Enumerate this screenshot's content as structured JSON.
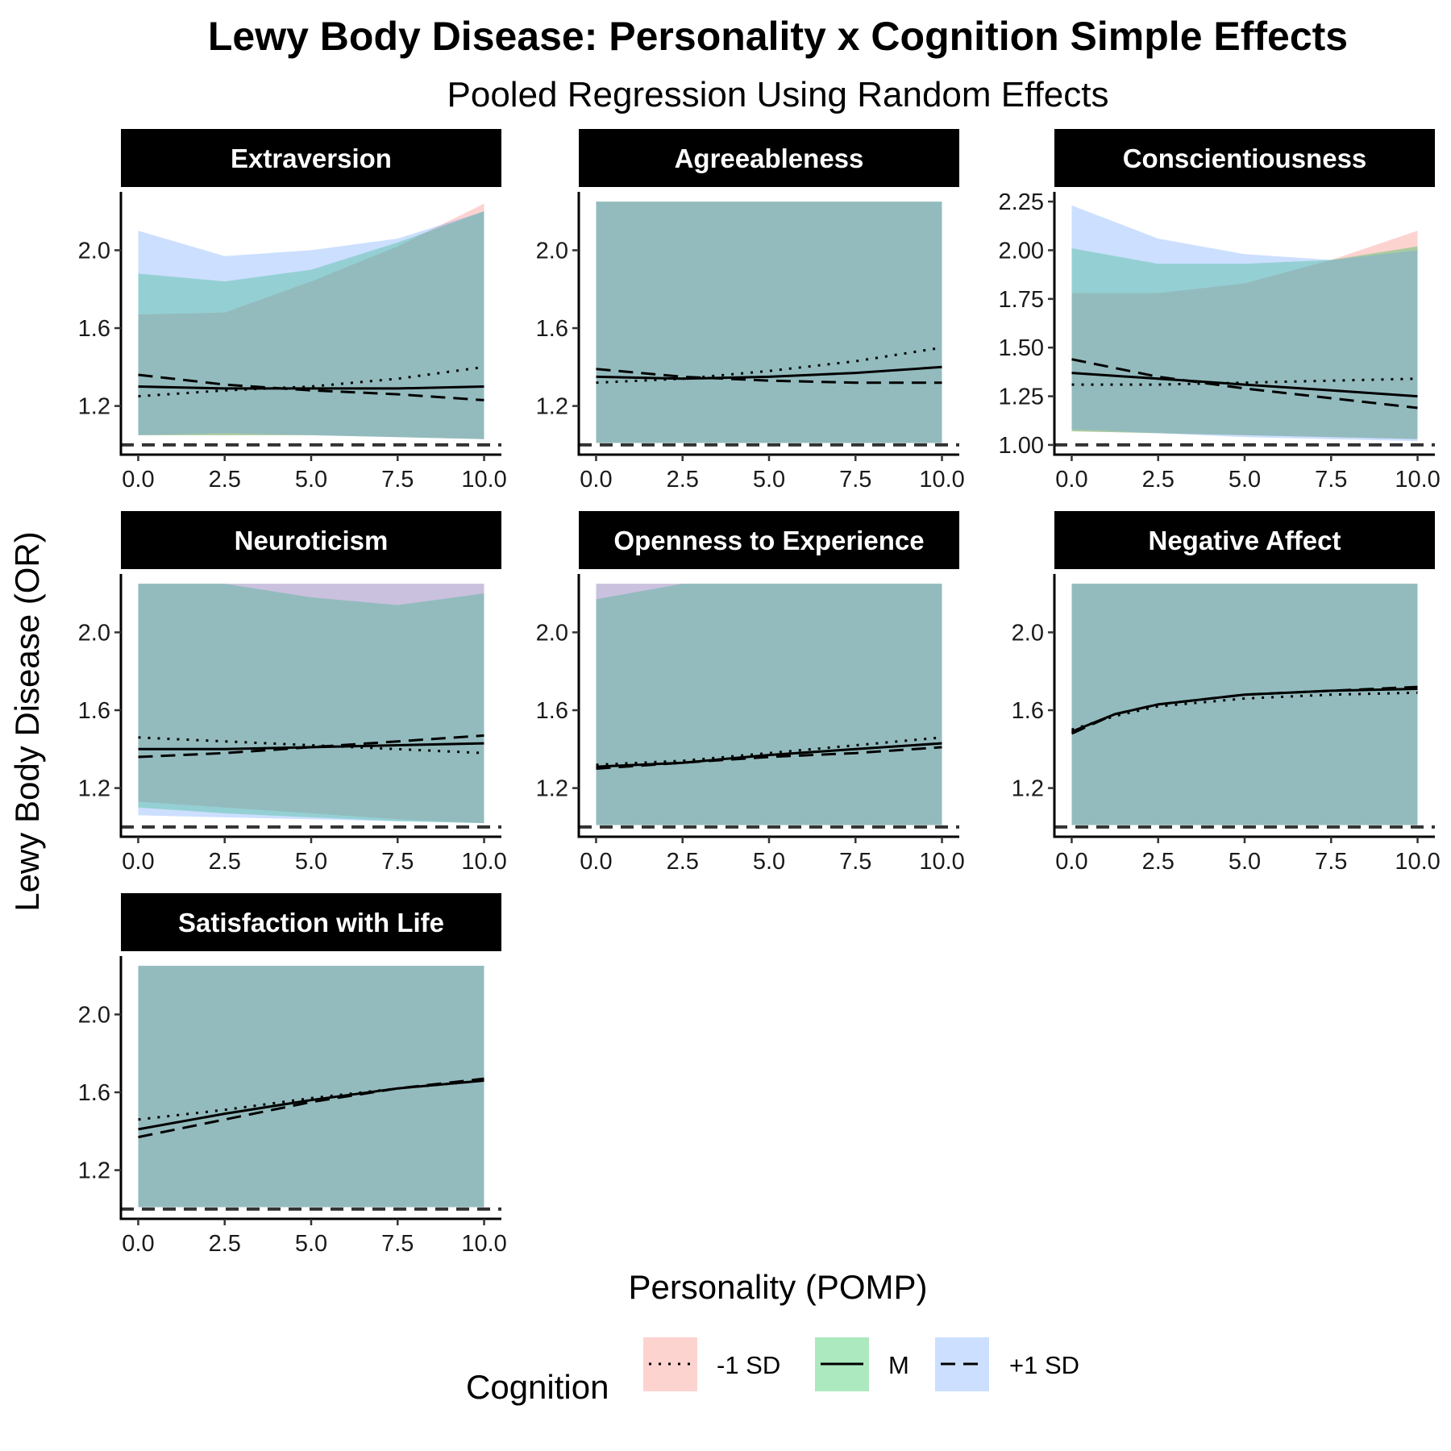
{
  "title": "Lewy Body Disease: Personality x Cognition Simple Effects",
  "subtitle": "Pooled Regression Using Random Effects",
  "xlabel": "Personality (POMP)",
  "ylabel": "Lewy Body Disease (OR)",
  "legend": {
    "title": "Cognition",
    "entries": [
      {
        "label": "-1 SD",
        "fill": "#F8766D",
        "linetype": "dotted"
      },
      {
        "label": "M",
        "fill": "#00BA38",
        "linetype": "solid"
      },
      {
        "label": "+1 SD",
        "fill": "#619CFF",
        "linetype": "dashed"
      }
    ]
  },
  "colors": {
    "minus1": "#F8766D",
    "mean": "#00BA38",
    "plus1": "#619CFF",
    "strip": "#000000",
    "reference": "#333333"
  },
  "chart_data": {
    "type": "line",
    "x_ticks": [
      "0.0",
      "2.5",
      "5.0",
      "7.5",
      "10.0"
    ],
    "xlim": [
      -0.5,
      10.5
    ],
    "reference_line": 1,
    "panels": [
      {
        "name": "Extraversion",
        "ylim": [
          0.95,
          2.3
        ],
        "y_ticks": [
          1.2,
          1.6,
          2.0
        ],
        "y_tick_labels": [
          "1.2",
          "1.6",
          "2.0"
        ],
        "x": [
          0,
          2.5,
          5,
          7.5,
          10
        ],
        "series": [
          {
            "key": "minus1",
            "values": [
              1.25,
              1.28,
              1.3,
              1.34,
              1.4
            ],
            "lower": [
              1.05,
              1.05,
              1.05,
              1.04,
              1.03
            ],
            "upper": [
              1.67,
              1.68,
              1.84,
              2.02,
              2.24
            ]
          },
          {
            "key": "mean",
            "values": [
              1.3,
              1.29,
              1.29,
              1.29,
              1.3
            ],
            "lower": [
              1.05,
              1.05,
              1.05,
              1.04,
              1.03
            ],
            "upper": [
              1.88,
              1.84,
              1.9,
              2.04,
              2.2
            ]
          },
          {
            "key": "plus1",
            "values": [
              1.36,
              1.31,
              1.28,
              1.26,
              1.23
            ],
            "lower": [
              1.05,
              1.06,
              1.05,
              1.04,
              1.03
            ],
            "upper": [
              2.1,
              1.97,
              2.0,
              2.06,
              2.2
            ]
          }
        ]
      },
      {
        "name": "Agreeableness",
        "ylim": [
          0.95,
          2.3
        ],
        "y_ticks": [
          1.2,
          1.6,
          2.0
        ],
        "y_tick_labels": [
          "1.2",
          "1.6",
          "2.0"
        ],
        "x": [
          0,
          2.5,
          5,
          7.5,
          10
        ],
        "series": [
          {
            "key": "minus1",
            "values": [
              1.32,
              1.34,
              1.38,
              1.43,
              1.5
            ],
            "lower": [
              1.01,
              1.01,
              1.01,
              1.01,
              1.01
            ],
            "upper": [
              2.25,
              2.25,
              2.25,
              2.25,
              2.25
            ]
          },
          {
            "key": "mean",
            "values": [
              1.35,
              1.34,
              1.35,
              1.37,
              1.4
            ],
            "lower": [
              1.01,
              1.01,
              1.01,
              1.01,
              1.01
            ],
            "upper": [
              2.25,
              2.25,
              2.25,
              2.25,
              2.25
            ]
          },
          {
            "key": "plus1",
            "values": [
              1.39,
              1.35,
              1.33,
              1.32,
              1.32
            ],
            "lower": [
              1.01,
              1.01,
              1.01,
              1.01,
              1.01
            ],
            "upper": [
              2.25,
              2.25,
              2.25,
              2.25,
              2.25
            ]
          }
        ]
      },
      {
        "name": "Conscientiousness",
        "ylim": [
          0.95,
          2.3
        ],
        "y_ticks": [
          1.0,
          1.25,
          1.5,
          1.75,
          2.0,
          2.25
        ],
        "y_tick_labels": [
          "1.00",
          "1.25",
          "1.50",
          "1.75",
          "2.00",
          "2.25"
        ],
        "x": [
          0,
          2.5,
          5,
          7.5,
          10
        ],
        "series": [
          {
            "key": "minus1",
            "values": [
              1.31,
              1.31,
              1.32,
              1.33,
              1.34
            ],
            "lower": [
              1.07,
              1.06,
              1.05,
              1.04,
              1.03
            ],
            "upper": [
              1.78,
              1.78,
              1.83,
              1.95,
              2.1
            ]
          },
          {
            "key": "mean",
            "values": [
              1.37,
              1.34,
              1.31,
              1.28,
              1.25
            ],
            "lower": [
              1.07,
              1.06,
              1.05,
              1.04,
              1.03
            ],
            "upper": [
              2.01,
              1.93,
              1.93,
              1.95,
              2.02
            ]
          },
          {
            "key": "plus1",
            "values": [
              1.44,
              1.35,
              1.29,
              1.24,
              1.19
            ],
            "lower": [
              1.08,
              1.06,
              1.04,
              1.03,
              1.02
            ],
            "upper": [
              2.23,
              2.06,
              1.98,
              1.95,
              2.0
            ]
          }
        ]
      },
      {
        "name": "Neuroticism",
        "ylim": [
          0.95,
          2.3
        ],
        "y_ticks": [
          1.2,
          1.6,
          2.0
        ],
        "y_tick_labels": [
          "1.2",
          "1.6",
          "2.0"
        ],
        "x": [
          0,
          2.5,
          5,
          7.5,
          10
        ],
        "series": [
          {
            "key": "minus1",
            "values": [
              1.46,
              1.44,
              1.42,
              1.4,
              1.38
            ],
            "lower": [
              1.13,
              1.1,
              1.07,
              1.04,
              1.02
            ],
            "upper": [
              2.25,
              2.25,
              2.25,
              2.25,
              2.25
            ]
          },
          {
            "key": "mean",
            "values": [
              1.4,
              1.4,
              1.41,
              1.42,
              1.43
            ],
            "lower": [
              1.1,
              1.07,
              1.05,
              1.03,
              1.02
            ],
            "upper": [
              2.25,
              2.25,
              2.18,
              2.14,
              2.2
            ]
          },
          {
            "key": "plus1",
            "values": [
              1.36,
              1.38,
              1.41,
              1.44,
              1.47
            ],
            "lower": [
              1.06,
              1.05,
              1.04,
              1.03,
              1.02
            ],
            "upper": [
              2.25,
              2.25,
              2.25,
              2.25,
              2.25
            ]
          }
        ]
      },
      {
        "name": "Openness to Experience",
        "ylim": [
          0.95,
          2.3
        ],
        "y_ticks": [
          1.2,
          1.6,
          2.0
        ],
        "y_tick_labels": [
          "1.2",
          "1.6",
          "2.0"
        ],
        "x": [
          0,
          2.5,
          5,
          7.5,
          10
        ],
        "series": [
          {
            "key": "minus1",
            "values": [
              1.32,
              1.34,
              1.38,
              1.42,
              1.46
            ],
            "lower": [
              1.01,
              1.01,
              1.01,
              1.01,
              1.01
            ],
            "upper": [
              2.25,
              2.25,
              2.25,
              2.25,
              2.25
            ]
          },
          {
            "key": "mean",
            "values": [
              1.31,
              1.33,
              1.37,
              1.4,
              1.43
            ],
            "lower": [
              1.01,
              1.01,
              1.01,
              1.01,
              1.01
            ],
            "upper": [
              2.17,
              2.25,
              2.25,
              2.25,
              2.25
            ]
          },
          {
            "key": "plus1",
            "values": [
              1.3,
              1.33,
              1.36,
              1.38,
              1.41
            ],
            "lower": [
              1.01,
              1.01,
              1.01,
              1.01,
              1.01
            ],
            "upper": [
              2.25,
              2.25,
              2.25,
              2.25,
              2.25
            ]
          }
        ]
      },
      {
        "name": "Negative Affect",
        "ylim": [
          0.95,
          2.3
        ],
        "y_ticks": [
          1.2,
          1.6,
          2.0
        ],
        "y_tick_labels": [
          "1.2",
          "1.6",
          "2.0"
        ],
        "x": [
          0,
          1.25,
          2.5,
          5,
          7.5,
          10
        ],
        "series": [
          {
            "key": "minus1",
            "values": [
              1.5,
              1.57,
              1.62,
              1.66,
              1.68,
              1.69
            ],
            "lower": [
              1.01,
              1.01,
              1.01,
              1.01,
              1.01,
              1.01
            ],
            "upper": [
              2.25,
              2.25,
              2.25,
              2.25,
              2.25,
              2.25
            ]
          },
          {
            "key": "mean",
            "values": [
              1.49,
              1.58,
              1.63,
              1.68,
              1.7,
              1.71
            ],
            "lower": [
              1.01,
              1.01,
              1.01,
              1.01,
              1.01,
              1.01
            ],
            "upper": [
              2.25,
              2.25,
              2.25,
              2.25,
              2.25,
              2.25
            ]
          },
          {
            "key": "plus1",
            "values": [
              1.48,
              1.58,
              1.63,
              1.68,
              1.7,
              1.72
            ],
            "lower": [
              1.01,
              1.01,
              1.01,
              1.01,
              1.01,
              1.01
            ],
            "upper": [
              2.25,
              2.25,
              2.25,
              2.25,
              2.25,
              2.25
            ]
          }
        ]
      },
      {
        "name": "Satisfaction with Life",
        "ylim": [
          0.95,
          2.3
        ],
        "y_ticks": [
          1.2,
          1.6,
          2.0
        ],
        "y_tick_labels": [
          "1.2",
          "1.6",
          "2.0"
        ],
        "x": [
          0,
          2.5,
          5,
          7.5,
          10
        ],
        "series": [
          {
            "key": "minus1",
            "values": [
              1.46,
              1.51,
              1.57,
              1.62,
              1.66
            ],
            "lower": [
              1.01,
              1.01,
              1.01,
              1.01,
              1.01
            ],
            "upper": [
              2.25,
              2.25,
              2.25,
              2.25,
              2.25
            ]
          },
          {
            "key": "mean",
            "values": [
              1.41,
              1.49,
              1.56,
              1.62,
              1.66
            ],
            "lower": [
              1.01,
              1.01,
              1.01,
              1.01,
              1.01
            ],
            "upper": [
              2.25,
              2.25,
              2.25,
              2.25,
              2.25
            ]
          },
          {
            "key": "plus1",
            "values": [
              1.37,
              1.46,
              1.55,
              1.62,
              1.67
            ],
            "lower": [
              1.01,
              1.01,
              1.01,
              1.01,
              1.01
            ],
            "upper": [
              2.25,
              2.25,
              2.25,
              2.25,
              2.25
            ]
          }
        ]
      }
    ]
  }
}
